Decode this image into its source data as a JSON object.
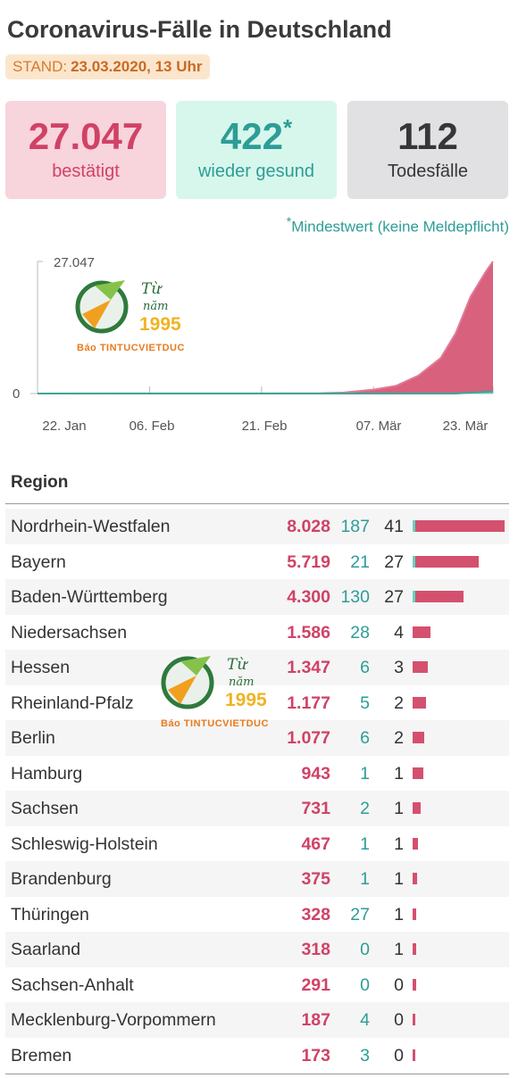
{
  "header": {
    "title": "Coronavirus-Fälle in Deutschland",
    "stand_label": "STAND:",
    "stand_value": "23.03.2020, 13 Uhr"
  },
  "summary": {
    "confirmed_value": "27.047",
    "confirmed_label": "bestätigt",
    "recovered_value": "422",
    "recovered_star": "*",
    "recovered_label": "wieder gesund",
    "deaths_value": "112",
    "deaths_label": "Todesfälle",
    "colors": {
      "confirmed": "#d04266",
      "recovered": "#2d9d96",
      "deaths": "#363636"
    }
  },
  "note": {
    "star": "*",
    "text": "Mindestwert (keine Meldepflicht)"
  },
  "chart_data": {
    "type": "area",
    "y_top_label": "27.047",
    "y_bottom_label": "0",
    "ylim": [
      0,
      27047
    ],
    "x_tick_labels": [
      "22. Jan",
      "06. Feb",
      "21. Feb",
      "07. Mär",
      "23. Mär"
    ],
    "x": [
      "22. Jan",
      "06. Feb",
      "21. Feb",
      "29. Feb",
      "03. Mär",
      "07. Mär",
      "10. Mär",
      "13. Mär",
      "16. Mär",
      "18. Mär",
      "20. Mär",
      "21. Mär",
      "22. Mär",
      "23. Mär"
    ],
    "series": [
      {
        "color": "#d4506f",
        "values": [
          0,
          16,
          16,
          79,
          196,
          800,
          1565,
          3675,
          7272,
          12327,
          19848,
          22364,
          24873,
          27047
        ]
      },
      {
        "color": "#5fd6bf",
        "values": [
          0,
          0,
          0,
          0,
          0,
          0,
          0,
          0,
          0,
          0,
          180,
          250,
          350,
          422
        ]
      }
    ]
  },
  "watermark": {
    "line1": "Từ",
    "line2": "năm",
    "year": "1995",
    "brand": "Báo TINTUCVIETDUC"
  },
  "table": {
    "header": "Region",
    "max_confirmed": 8028,
    "rows": [
      {
        "name": "Nordrhein-Westfalen",
        "confirmed": "8.028",
        "recovered": "187",
        "deaths": "41",
        "value": 8028
      },
      {
        "name": "Bayern",
        "confirmed": "5.719",
        "recovered": "21",
        "deaths": "27",
        "value": 5719
      },
      {
        "name": "Baden-Württemberg",
        "confirmed": "4.300",
        "recovered": "130",
        "deaths": "27",
        "value": 4300
      },
      {
        "name": "Niedersachsen",
        "confirmed": "1.586",
        "recovered": "28",
        "deaths": "4",
        "value": 1586
      },
      {
        "name": "Hessen",
        "confirmed": "1.347",
        "recovered": "6",
        "deaths": "3",
        "value": 1347
      },
      {
        "name": "Rheinland-Pfalz",
        "confirmed": "1.177",
        "recovered": "5",
        "deaths": "2",
        "value": 1177
      },
      {
        "name": "Berlin",
        "confirmed": "1.077",
        "recovered": "6",
        "deaths": "2",
        "value": 1077
      },
      {
        "name": "Hamburg",
        "confirmed": "943",
        "recovered": "1",
        "deaths": "1",
        "value": 943
      },
      {
        "name": "Sachsen",
        "confirmed": "731",
        "recovered": "2",
        "deaths": "1",
        "value": 731
      },
      {
        "name": "Schleswig-Holstein",
        "confirmed": "467",
        "recovered": "1",
        "deaths": "1",
        "value": 467
      },
      {
        "name": "Brandenburg",
        "confirmed": "375",
        "recovered": "1",
        "deaths": "1",
        "value": 375
      },
      {
        "name": "Thüringen",
        "confirmed": "328",
        "recovered": "27",
        "deaths": "1",
        "value": 328
      },
      {
        "name": "Saarland",
        "confirmed": "318",
        "recovered": "0",
        "deaths": "1",
        "value": 318
      },
      {
        "name": "Sachsen-Anhalt",
        "confirmed": "291",
        "recovered": "0",
        "deaths": "0",
        "value": 291
      },
      {
        "name": "Mecklenburg-Vorpommern",
        "confirmed": "187",
        "recovered": "4",
        "deaths": "0",
        "value": 187
      },
      {
        "name": "Bremen",
        "confirmed": "173",
        "recovered": "3",
        "deaths": "0",
        "value": 173
      }
    ]
  }
}
